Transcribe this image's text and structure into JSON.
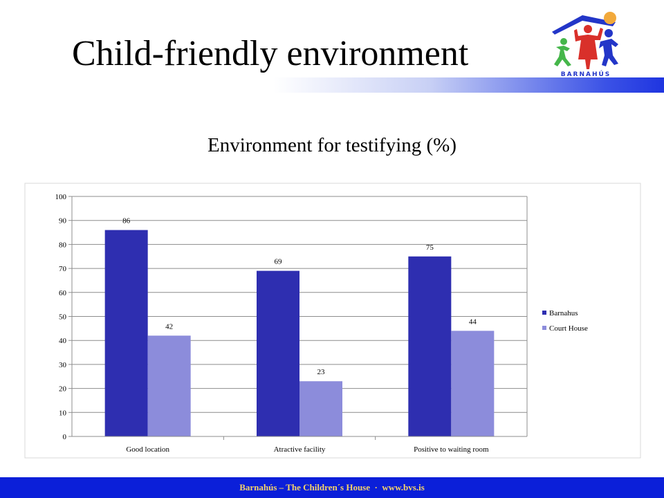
{
  "slide": {
    "title": "Child-friendly environment",
    "logo_text": "BARNAHÚS"
  },
  "footer": {
    "org": "Barnahús – The Children´s House",
    "sep": "·",
    "url": "www.bvs.is"
  },
  "colors": {
    "barnahus": "#2e2eb0",
    "court_house": "#8c8cdb",
    "footer_bg": "#0b1fd9",
    "footer_text": "#f5d36b",
    "gridline": "#8c8c8c"
  },
  "chart_data": {
    "type": "bar",
    "title": "Environment for testifying (%)",
    "categories": [
      "Good location",
      "Atractive facility",
      "Positive to waiting room"
    ],
    "series": [
      {
        "name": "Barnahus",
        "values": [
          86,
          69,
          75
        ]
      },
      {
        "name": "Court House",
        "values": [
          42,
          23,
          44
        ]
      }
    ],
    "ylim": [
      0,
      100
    ],
    "yticks": [
      0,
      10,
      20,
      30,
      40,
      50,
      60,
      70,
      80,
      90,
      100
    ],
    "grid": true,
    "data_labels": true,
    "legend": "right"
  }
}
